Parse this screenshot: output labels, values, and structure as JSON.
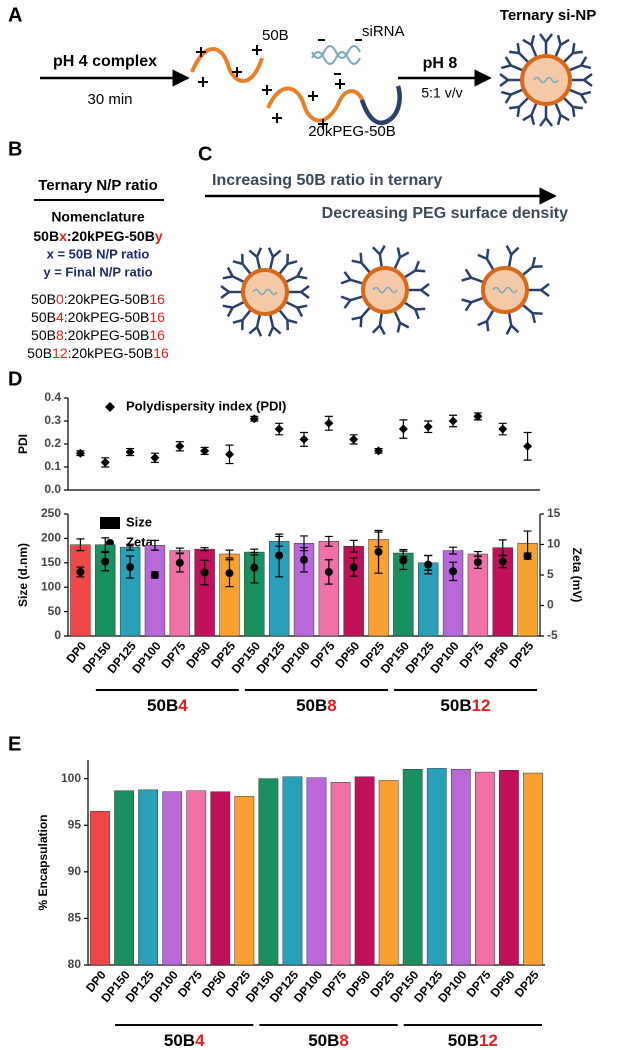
{
  "panels": [
    "A",
    "B",
    "C",
    "D",
    "E"
  ],
  "scheme": {
    "step1": "pH 4 complex",
    "time": "30 min",
    "polymer": "50B",
    "sirna": "siRNA",
    "peg": "20kPEG-50B",
    "step2": "pH 8",
    "ratio": "5:1 v/v",
    "product": "Ternary si-NP"
  },
  "nomenclature": {
    "title": "Ternary N/P ratio",
    "heading": "Nomenclature",
    "pattern": [
      "50B",
      "x",
      ":20kPEG-50B",
      "y"
    ],
    "x_def": "x = 50B N/P ratio",
    "y_def": "y = Final N/P ratio",
    "rows": [
      [
        "50B",
        "0",
        ":20kPEG-50B",
        "16"
      ],
      [
        "50B",
        "4",
        ":20kPEG-50B",
        "16"
      ],
      [
        "50B",
        "8",
        ":20kPEG-50B",
        "16"
      ],
      [
        "50B",
        "12",
        ":20kPEG-50B",
        "16"
      ]
    ]
  },
  "gradient": {
    "increasing": "Increasing 50B ratio in ternary",
    "decreasing": "Decreasing PEG surface density"
  },
  "chart_data": [
    {
      "type": "scatter",
      "ylabel": "PDI",
      "ylim": [
        0,
        0.4
      ],
      "yticks": [
        {
          "value": 0,
          "label": "0.0"
        },
        0.1,
        0.2,
        0.3,
        0.4
      ],
      "series": [
        {
          "name": "Polydispersity index (PDI)",
          "color": "#000000",
          "values": [
            0.16,
            0.12,
            0.165,
            0.14,
            0.19,
            0.17,
            0.155,
            0.31,
            0.265,
            0.22,
            0.29,
            0.22,
            0.17,
            0.265,
            0.275,
            0.3,
            0.32,
            0.265,
            0.19
          ],
          "errors": [
            0.01,
            0.02,
            0.015,
            0.02,
            0.02,
            0.015,
            0.04,
            0.01,
            0.025,
            0.03,
            0.03,
            0.02,
            0.01,
            0.04,
            0.025,
            0.025,
            0.015,
            0.025,
            0.06
          ]
        }
      ]
    },
    {
      "type": "bar",
      "ylabel": "Size (d.nm)",
      "y2label": "Zeta (mV)",
      "ylim": [
        0,
        250
      ],
      "yticks": [
        0,
        50,
        100,
        150,
        200,
        250
      ],
      "y2lim": [
        -5,
        15
      ],
      "y2ticks": [
        -5,
        0,
        5,
        10,
        15
      ],
      "categories": [
        "DP0",
        "DP150",
        "DP125",
        "DP100",
        "DP75",
        "DP50",
        "DP25",
        "DP150",
        "DP125",
        "DP100",
        "DP75",
        "DP50",
        "DP25",
        "DP150",
        "DP125",
        "DP100",
        "DP75",
        "DP50",
        "DP25"
      ],
      "colors": [
        "#f04848",
        "#1a9060",
        "#2aa0b8",
        "#b868d8",
        "#f070a8",
        "#c0105a",
        "#f8a030",
        "#1a9060",
        "#2aa0b8",
        "#b868d8",
        "#f070a8",
        "#c0105a",
        "#f8a030",
        "#1a9060",
        "#2aa0b8",
        "#b868d8",
        "#f070a8",
        "#c0105a",
        "#f8a030"
      ],
      "groups": [
        [
          "50B",
          "4"
        ],
        [
          "50B",
          "8"
        ],
        [
          "50B",
          "12"
        ]
      ],
      "series": [
        {
          "name": "Size",
          "color": "#000000",
          "values": [
            187,
            187,
            182,
            186,
            175,
            178,
            168,
            172,
            194,
            190,
            194,
            184,
            198,
            170,
            150,
            175,
            168,
            181,
            190
          ],
          "errors": [
            12,
            14,
            6,
            10,
            5,
            3,
            8,
            6,
            10,
            15,
            10,
            12,
            15,
            7,
            15,
            7,
            5,
            16,
            25
          ]
        },
        {
          "name": "Zeta",
          "color": "#000000",
          "axis": "y2",
          "values": [
            5.5,
            7.2,
            6.3,
            5.0,
            7.0,
            5.4,
            5.3,
            6.2,
            8.2,
            7.5,
            5.5,
            6.3,
            8.8,
            7.4,
            6.7,
            5.6,
            7.1,
            7.2,
            8.1
          ],
          "errors": [
            0.8,
            1.5,
            1.8,
            0.5,
            1.5,
            2,
            2.2,
            2.5,
            3.5,
            2,
            2,
            1.5,
            3.5,
            1.5,
            1.5,
            1.5,
            1,
            1,
            0.5
          ]
        }
      ]
    },
    {
      "type": "bar",
      "ylabel": "% Encapsulation",
      "ylim": [
        80,
        102
      ],
      "yticks": [
        80,
        85,
        90,
        95,
        100
      ],
      "categories": [
        "DP0",
        "DP150",
        "DP125",
        "DP100",
        "DP75",
        "DP50",
        "DP25",
        "DP150",
        "DP125",
        "DP100",
        "DP75",
        "DP50",
        "DP25",
        "DP150",
        "DP125",
        "DP100",
        "DP75",
        "DP50",
        "DP25"
      ],
      "colors": [
        "#f04848",
        "#1a9060",
        "#2aa0b8",
        "#b868d8",
        "#f070a8",
        "#c0105a",
        "#f8a030",
        "#1a9060",
        "#2aa0b8",
        "#b868d8",
        "#f070a8",
        "#c0105a",
        "#f8a030",
        "#1a9060",
        "#2aa0b8",
        "#b868d8",
        "#f070a8",
        "#c0105a",
        "#f8a030"
      ],
      "groups": [
        [
          "50B",
          "4"
        ],
        [
          "50B",
          "8"
        ],
        [
          "50B",
          "12"
        ]
      ],
      "series": [
        {
          "values": [
            96.5,
            98.7,
            98.8,
            98.6,
            98.7,
            98.6,
            98.1,
            100.0,
            100.2,
            100.1,
            99.6,
            100.2,
            99.8,
            101.0,
            101.1,
            101.0,
            100.7,
            100.9,
            100.6
          ]
        }
      ]
    }
  ]
}
